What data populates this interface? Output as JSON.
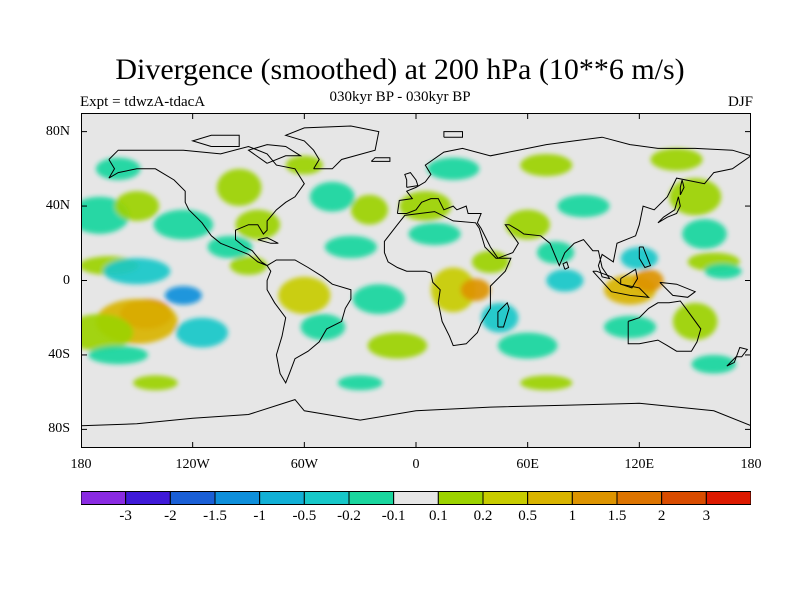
{
  "title": "Divergence (smoothed) at 200 hPa (10**6 m/s)",
  "subtitle": "030kyr BP - 030kyr BP",
  "experiment": "Expt = tdwzA-tdacA",
  "season": "DJF",
  "colors": {
    "background": "#e6e6e6",
    "coast": "#000000",
    "palette": [
      "#8a2be2",
      "#3f1ad8",
      "#1a5fd6",
      "#0e8fdb",
      "#11b0d6",
      "#17c8c9",
      "#1ad69e",
      "#e6e6e6",
      "#9cd300",
      "#c8cc00",
      "#d9b400",
      "#dd9400",
      "#dd7400",
      "#d94c00",
      "#dd1a00"
    ]
  },
  "map": {
    "projection": "cylindrical-equidistant",
    "lon_range": [
      -180,
      180
    ],
    "lat_range": [
      -90,
      90
    ],
    "y_ticks": [
      {
        "label": "80N",
        "lat": 80
      },
      {
        "label": "40N",
        "lat": 40
      },
      {
        "label": "0",
        "lat": 0
      },
      {
        "label": "40S",
        "lat": -40
      },
      {
        "label": "80S",
        "lat": -80
      }
    ],
    "x_ticks": [
      {
        "label": "180",
        "lon": -180
      },
      {
        "label": "120W",
        "lon": -120
      },
      {
        "label": "60W",
        "lon": -60
      },
      {
        "label": "0",
        "lon": 0
      },
      {
        "label": "60E",
        "lon": 60
      },
      {
        "label": "120E",
        "lon": 120
      },
      {
        "label": "180",
        "lon": 180
      }
    ]
  },
  "colorbar": {
    "labels": [
      "-3",
      "-2",
      "-1.5",
      "-1",
      "-0.5",
      "-0.2",
      "-0.1",
      "0.1",
      "0.2",
      "0.5",
      "1",
      "1.5",
      "2",
      "3"
    ],
    "levels": [
      -3,
      -2,
      -1.5,
      -1,
      -0.5,
      -0.2,
      -0.1,
      0.1,
      0.2,
      0.5,
      1,
      1.5,
      2,
      3
    ]
  },
  "features": [
    {
      "lon": -145,
      "lat": -18,
      "rx": 14,
      "ry": 8,
      "level": 6
    },
    {
      "lon": -150,
      "lat": -22,
      "rx": 22,
      "ry": 12,
      "level": 3
    },
    {
      "lon": -170,
      "lat": -28,
      "rx": 18,
      "ry": 10,
      "level": 1
    },
    {
      "lon": -125,
      "lat": -8,
      "rx": 10,
      "ry": 5,
      "level": -4
    },
    {
      "lon": -165,
      "lat": 8,
      "rx": 16,
      "ry": 5,
      "level": 1
    },
    {
      "lon": -150,
      "lat": 5,
      "rx": 18,
      "ry": 7,
      "level": -2
    },
    {
      "lon": -115,
      "lat": -28,
      "rx": 14,
      "ry": 8,
      "level": -2
    },
    {
      "lon": -160,
      "lat": -40,
      "rx": 16,
      "ry": 5,
      "level": -1
    },
    {
      "lon": -170,
      "lat": 35,
      "rx": 16,
      "ry": 10,
      "level": -1
    },
    {
      "lon": -125,
      "lat": 30,
      "rx": 16,
      "ry": 8,
      "level": -1
    },
    {
      "lon": -150,
      "lat": 40,
      "rx": 12,
      "ry": 8,
      "level": 1
    },
    {
      "lon": -160,
      "lat": 60,
      "rx": 12,
      "ry": 6,
      "level": -1
    },
    {
      "lon": -95,
      "lat": 50,
      "rx": 12,
      "ry": 10,
      "level": 1
    },
    {
      "lon": -85,
      "lat": 30,
      "rx": 12,
      "ry": 8,
      "level": 1
    },
    {
      "lon": -100,
      "lat": 18,
      "rx": 12,
      "ry": 6,
      "level": -1
    },
    {
      "lon": -90,
      "lat": 8,
      "rx": 10,
      "ry": 5,
      "level": 1
    },
    {
      "lon": -60,
      "lat": -8,
      "rx": 14,
      "ry": 10,
      "level": 2
    },
    {
      "lon": -50,
      "lat": -25,
      "rx": 12,
      "ry": 7,
      "level": -1
    },
    {
      "lon": -35,
      "lat": 18,
      "rx": 14,
      "ry": 6,
      "level": -1
    },
    {
      "lon": -45,
      "lat": 45,
      "rx": 12,
      "ry": 8,
      "level": -1
    },
    {
      "lon": -25,
      "lat": 38,
      "rx": 10,
      "ry": 8,
      "level": 1
    },
    {
      "lon": -20,
      "lat": -10,
      "rx": 14,
      "ry": 8,
      "level": -1
    },
    {
      "lon": -10,
      "lat": -35,
      "rx": 16,
      "ry": 7,
      "level": 1
    },
    {
      "lon": 5,
      "lat": 40,
      "rx": 14,
      "ry": 8,
      "level": 1
    },
    {
      "lon": 10,
      "lat": 25,
      "rx": 14,
      "ry": 6,
      "level": -1
    },
    {
      "lon": 20,
      "lat": -5,
      "rx": 12,
      "ry": 12,
      "level": 2
    },
    {
      "lon": 32,
      "lat": -5,
      "rx": 8,
      "ry": 6,
      "level": 4
    },
    {
      "lon": 40,
      "lat": 10,
      "rx": 10,
      "ry": 6,
      "level": 1
    },
    {
      "lon": 45,
      "lat": -20,
      "rx": 10,
      "ry": 8,
      "level": -2
    },
    {
      "lon": 60,
      "lat": -35,
      "rx": 16,
      "ry": 7,
      "level": -1
    },
    {
      "lon": 60,
      "lat": 30,
      "rx": 12,
      "ry": 8,
      "level": 1
    },
    {
      "lon": 75,
      "lat": 15,
      "rx": 10,
      "ry": 6,
      "level": -1
    },
    {
      "lon": 80,
      "lat": 0,
      "rx": 10,
      "ry": 6,
      "level": -2
    },
    {
      "lon": 90,
      "lat": 40,
      "rx": 14,
      "ry": 6,
      "level": -1
    },
    {
      "lon": 115,
      "lat": -5,
      "rx": 14,
      "ry": 8,
      "level": 3
    },
    {
      "lon": 125,
      "lat": 0,
      "rx": 8,
      "ry": 6,
      "level": 4
    },
    {
      "lon": 120,
      "lat": 12,
      "rx": 10,
      "ry": 6,
      "level": -2
    },
    {
      "lon": 115,
      "lat": -25,
      "rx": 14,
      "ry": 6,
      "level": -1
    },
    {
      "lon": 150,
      "lat": -22,
      "rx": 12,
      "ry": 10,
      "level": 1
    },
    {
      "lon": 155,
      "lat": 25,
      "rx": 12,
      "ry": 8,
      "level": -1
    },
    {
      "lon": 150,
      "lat": 45,
      "rx": 14,
      "ry": 10,
      "level": 1
    },
    {
      "lon": 160,
      "lat": 10,
      "rx": 14,
      "ry": 5,
      "level": 1
    },
    {
      "lon": 165,
      "lat": 5,
      "rx": 10,
      "ry": 4,
      "level": -1
    },
    {
      "lon": -60,
      "lat": 62,
      "rx": 10,
      "ry": 5,
      "level": 1
    },
    {
      "lon": 20,
      "lat": 60,
      "rx": 14,
      "ry": 6,
      "level": -1
    },
    {
      "lon": 70,
      "lat": 62,
      "rx": 14,
      "ry": 6,
      "level": 1
    },
    {
      "lon": 140,
      "lat": 65,
      "rx": 14,
      "ry": 6,
      "level": 1
    },
    {
      "lon": -140,
      "lat": -55,
      "rx": 12,
      "ry": 4,
      "level": 1
    },
    {
      "lon": -30,
      "lat": -55,
      "rx": 12,
      "ry": 4,
      "level": -1
    },
    {
      "lon": 70,
      "lat": -55,
      "rx": 14,
      "ry": 4,
      "level": 1
    },
    {
      "lon": 160,
      "lat": -45,
      "rx": 12,
      "ry": 5,
      "level": -1
    }
  ],
  "coastlines": {
    "north_america": [
      [
        -165,
        65
      ],
      [
        -160,
        70
      ],
      [
        -140,
        70
      ],
      [
        -125,
        70
      ],
      [
        -105,
        68
      ],
      [
        -90,
        72
      ],
      [
        -80,
        68
      ],
      [
        -75,
        62
      ],
      [
        -65,
        60
      ],
      [
        -60,
        52
      ],
      [
        -65,
        45
      ],
      [
        -70,
        42
      ],
      [
        -75,
        38
      ],
      [
        -80,
        32
      ],
      [
        -80,
        27
      ],
      [
        -82,
        25
      ],
      [
        -85,
        30
      ],
      [
        -90,
        30
      ],
      [
        -97,
        27
      ],
      [
        -97,
        22
      ],
      [
        -92,
        18
      ],
      [
        -88,
        16
      ],
      [
        -83,
        10
      ],
      [
        -80,
        8
      ],
      [
        -85,
        10
      ],
      [
        -90,
        14
      ],
      [
        -95,
        16
      ],
      [
        -105,
        20
      ],
      [
        -110,
        24
      ],
      [
        -115,
        31
      ],
      [
        -118,
        34
      ],
      [
        -122,
        38
      ],
      [
        -124,
        42
      ],
      [
        -124,
        48
      ],
      [
        -130,
        54
      ],
      [
        -140,
        60
      ],
      [
        -150,
        60
      ],
      [
        -160,
        58
      ],
      [
        -165,
        55
      ],
      [
        -162,
        60
      ],
      [
        -165,
        65
      ]
    ],
    "greenland": [
      [
        -55,
        60
      ],
      [
        -45,
        60
      ],
      [
        -40,
        65
      ],
      [
        -22,
        70
      ],
      [
        -20,
        80
      ],
      [
        -35,
        83
      ],
      [
        -60,
        82
      ],
      [
        -70,
        78
      ],
      [
        -60,
        75
      ],
      [
        -55,
        70
      ],
      [
        -52,
        65
      ],
      [
        -55,
        60
      ]
    ],
    "south_america": [
      [
        -80,
        8
      ],
      [
        -75,
        11
      ],
      [
        -65,
        11
      ],
      [
        -58,
        7
      ],
      [
        -50,
        2
      ],
      [
        -45,
        -2
      ],
      [
        -35,
        -5
      ],
      [
        -35,
        -10
      ],
      [
        -38,
        -15
      ],
      [
        -40,
        -22
      ],
      [
        -48,
        -26
      ],
      [
        -52,
        -33
      ],
      [
        -58,
        -38
      ],
      [
        -65,
        -42
      ],
      [
        -68,
        -50
      ],
      [
        -70,
        -55
      ],
      [
        -73,
        -50
      ],
      [
        -75,
        -40
      ],
      [
        -72,
        -30
      ],
      [
        -70,
        -20
      ],
      [
        -76,
        -12
      ],
      [
        -80,
        -5
      ],
      [
        -80,
        0
      ],
      [
        -78,
        5
      ],
      [
        -80,
        8
      ]
    ],
    "eurasia": [
      [
        -10,
        36
      ],
      [
        -9,
        43
      ],
      [
        -2,
        44
      ],
      [
        -5,
        48
      ],
      [
        0,
        50
      ],
      [
        5,
        53
      ],
      [
        8,
        57
      ],
      [
        5,
        62
      ],
      [
        15,
        69
      ],
      [
        25,
        71
      ],
      [
        40,
        67
      ],
      [
        55,
        70
      ],
      [
        70,
        73
      ],
      [
        85,
        75
      ],
      [
        100,
        77
      ],
      [
        115,
        73
      ],
      [
        130,
        71
      ],
      [
        150,
        71
      ],
      [
        170,
        70
      ],
      [
        180,
        67
      ],
      [
        170,
        60
      ],
      [
        160,
        58
      ],
      [
        155,
        52
      ],
      [
        140,
        55
      ],
      [
        135,
        45
      ],
      [
        128,
        38
      ],
      [
        122,
        40
      ],
      [
        120,
        30
      ],
      [
        118,
        24
      ],
      [
        108,
        20
      ],
      [
        106,
        10
      ],
      [
        100,
        14
      ],
      [
        98,
        8
      ],
      [
        100,
        2
      ],
      [
        104,
        1
      ],
      [
        100,
        7
      ],
      [
        98,
        16
      ],
      [
        95,
        16
      ],
      [
        90,
        22
      ],
      [
        85,
        20
      ],
      [
        80,
        15
      ],
      [
        77,
        8
      ],
      [
        72,
        20
      ],
      [
        67,
        24
      ],
      [
        58,
        25
      ],
      [
        55,
        27
      ],
      [
        50,
        30
      ],
      [
        48,
        30
      ],
      [
        55,
        20
      ],
      [
        52,
        15
      ],
      [
        44,
        12
      ],
      [
        40,
        18
      ],
      [
        35,
        28
      ],
      [
        33,
        31
      ],
      [
        35,
        36
      ],
      [
        28,
        36
      ],
      [
        27,
        40
      ],
      [
        22,
        38
      ],
      [
        20,
        40
      ],
      [
        15,
        38
      ],
      [
        12,
        44
      ],
      [
        8,
        44
      ],
      [
        3,
        42
      ],
      [
        0,
        38
      ],
      [
        -5,
        36
      ],
      [
        -10,
        36
      ]
    ],
    "africa": [
      [
        -17,
        15
      ],
      [
        -17,
        21
      ],
      [
        -10,
        30
      ],
      [
        -6,
        35
      ],
      [
        10,
        37
      ],
      [
        20,
        32
      ],
      [
        32,
        31
      ],
      [
        34,
        28
      ],
      [
        37,
        18
      ],
      [
        43,
        12
      ],
      [
        51,
        12
      ],
      [
        48,
        5
      ],
      [
        40,
        -3
      ],
      [
        40,
        -15
      ],
      [
        35,
        -23
      ],
      [
        33,
        -28
      ],
      [
        27,
        -34
      ],
      [
        20,
        -35
      ],
      [
        18,
        -30
      ],
      [
        14,
        -22
      ],
      [
        12,
        -12
      ],
      [
        13,
        -5
      ],
      [
        9,
        -1
      ],
      [
        8,
        4
      ],
      [
        5,
        5
      ],
      [
        -5,
        5
      ],
      [
        -10,
        7
      ],
      [
        -15,
        10
      ],
      [
        -17,
        15
      ]
    ],
    "madagascar": [
      [
        44,
        -25
      ],
      [
        47,
        -25
      ],
      [
        50,
        -15
      ],
      [
        49,
        -12
      ],
      [
        44,
        -17
      ],
      [
        44,
        -25
      ]
    ],
    "australia": [
      [
        114,
        -22
      ],
      [
        114,
        -34
      ],
      [
        120,
        -34
      ],
      [
        130,
        -32
      ],
      [
        135,
        -35
      ],
      [
        140,
        -38
      ],
      [
        148,
        -38
      ],
      [
        151,
        -33
      ],
      [
        153,
        -26
      ],
      [
        145,
        -15
      ],
      [
        142,
        -11
      ],
      [
        136,
        -12
      ],
      [
        130,
        -12
      ],
      [
        125,
        -15
      ],
      [
        120,
        -20
      ],
      [
        114,
        -22
      ]
    ],
    "new_zealand": [
      [
        167,
        -46
      ],
      [
        172,
        -41
      ],
      [
        175,
        -41
      ],
      [
        178,
        -37
      ],
      [
        174,
        -36
      ],
      [
        171,
        -44
      ],
      [
        167,
        -46
      ]
    ],
    "antarctica": [
      [
        -180,
        -78
      ],
      [
        -150,
        -77
      ],
      [
        -120,
        -74
      ],
      [
        -90,
        -72
      ],
      [
        -65,
        -64
      ],
      [
        -60,
        -70
      ],
      [
        -30,
        -75
      ],
      [
        0,
        -70
      ],
      [
        40,
        -68
      ],
      [
        80,
        -67
      ],
      [
        120,
        -66
      ],
      [
        160,
        -70
      ],
      [
        180,
        -78
      ]
    ],
    "indonesia": [
      [
        95,
        5
      ],
      [
        105,
        -6
      ],
      [
        115,
        -8
      ],
      [
        125,
        -9
      ],
      [
        120,
        -4
      ],
      [
        110,
        -2
      ],
      [
        105,
        2
      ],
      [
        97,
        5
      ],
      [
        95,
        5
      ]
    ],
    "borneo": [
      [
        110,
        1
      ],
      [
        118,
        6
      ],
      [
        119,
        1
      ],
      [
        116,
        -4
      ],
      [
        110,
        -2
      ],
      [
        110,
        1
      ]
    ],
    "new_guinea": [
      [
        131,
        -1
      ],
      [
        140,
        -2
      ],
      [
        150,
        -6
      ],
      [
        146,
        -9
      ],
      [
        138,
        -8
      ],
      [
        131,
        -1
      ]
    ],
    "japan": [
      [
        130,
        31
      ],
      [
        135,
        34
      ],
      [
        140,
        36
      ],
      [
        142,
        40
      ],
      [
        141,
        45
      ],
      [
        139,
        38
      ],
      [
        133,
        34
      ],
      [
        130,
        31
      ]
    ],
    "uk": [
      [
        -5,
        50
      ],
      [
        1,
        51
      ],
      [
        0,
        54
      ],
      [
        -3,
        58
      ],
      [
        -6,
        57
      ],
      [
        -5,
        54
      ],
      [
        -5,
        50
      ]
    ],
    "iceland": [
      [
        -24,
        64
      ],
      [
        -14,
        64
      ],
      [
        -14,
        66
      ],
      [
        -22,
        66
      ],
      [
        -24,
        64
      ]
    ],
    "baffin": [
      [
        -80,
        63
      ],
      [
        -70,
        67
      ],
      [
        -62,
        67
      ],
      [
        -70,
        72
      ],
      [
        -80,
        73
      ],
      [
        -90,
        70
      ],
      [
        -80,
        63
      ]
    ],
    "svalbard": [
      [
        15,
        77
      ],
      [
        25,
        77
      ],
      [
        25,
        80
      ],
      [
        15,
        80
      ],
      [
        15,
        77
      ]
    ],
    "arctic_islands": [
      [
        -110,
        72
      ],
      [
        -95,
        72
      ],
      [
        -95,
        78
      ],
      [
        -110,
        78
      ],
      [
        -120,
        75
      ],
      [
        -110,
        72
      ]
    ],
    "sri_lanka": [
      [
        80,
        6
      ],
      [
        82,
        7
      ],
      [
        81,
        10
      ],
      [
        79,
        9
      ],
      [
        80,
        6
      ]
    ],
    "philippines": [
      [
        120,
        18
      ],
      [
        122,
        18
      ],
      [
        126,
        8
      ],
      [
        123,
        7
      ],
      [
        120,
        12
      ],
      [
        120,
        18
      ]
    ],
    "cuba": [
      [
        -85,
        22
      ],
      [
        -80,
        23
      ],
      [
        -74,
        20
      ],
      [
        -78,
        20
      ],
      [
        -85,
        22
      ]
    ],
    "sakhalin": [
      [
        142,
        46
      ],
      [
        144,
        50
      ],
      [
        143,
        54
      ],
      [
        142,
        50
      ],
      [
        142,
        46
      ]
    ]
  }
}
